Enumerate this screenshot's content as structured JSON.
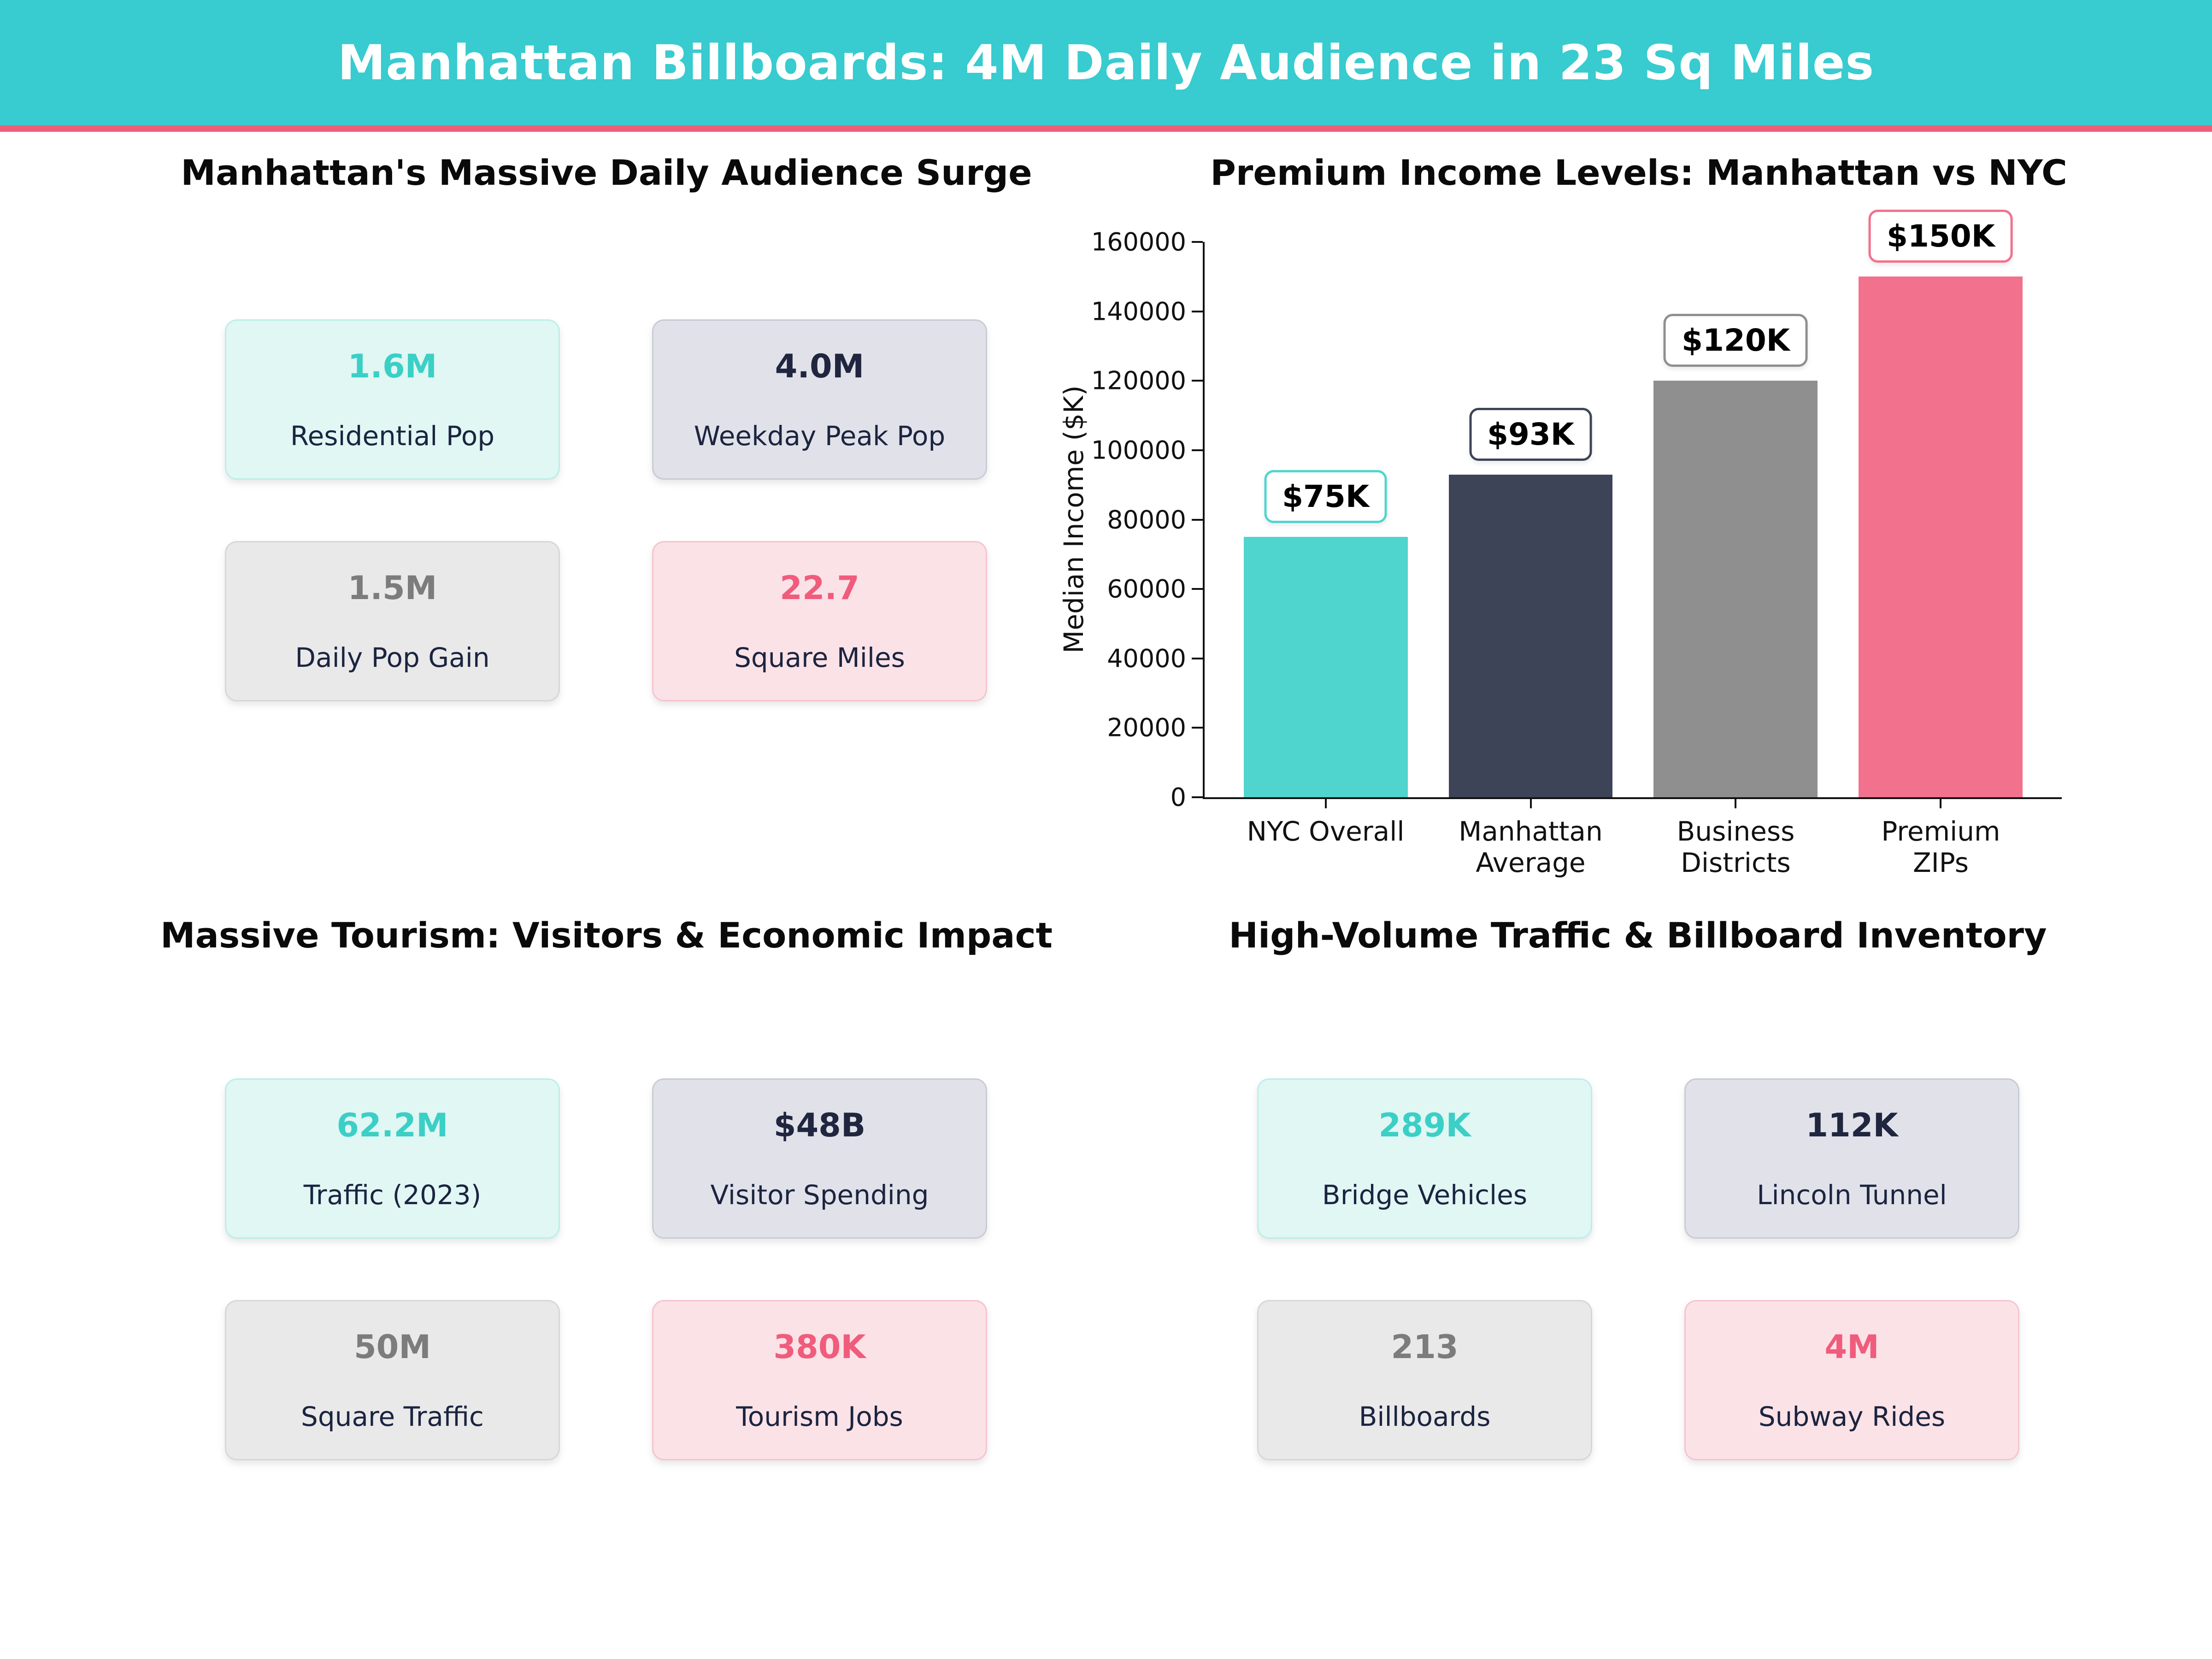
{
  "header": {
    "title": "Manhattan Billboards: 4M Daily Audience in 23 Sq Miles",
    "banner_color": "#38cbcf",
    "accent_color": "#ee5e78"
  },
  "quadrants": {
    "audience": {
      "title": "Manhattan's Massive Daily Audience Surge",
      "cards": [
        {
          "value": "1.6M",
          "label": "Residential Pop",
          "theme": "mint"
        },
        {
          "value": "4.0M",
          "label": "Weekday Peak Pop",
          "theme": "slate"
        },
        {
          "value": "1.5M",
          "label": "Daily Pop Gain",
          "theme": "gray"
        },
        {
          "value": "22.7",
          "label": "Square Miles",
          "theme": "pink"
        }
      ]
    },
    "tourism": {
      "title": "Massive Tourism: Visitors & Economic Impact",
      "cards": [
        {
          "value": "62.2M",
          "label": "Traffic (2023)",
          "theme": "mint"
        },
        {
          "value": "$48B",
          "label": "Visitor Spending",
          "theme": "slate"
        },
        {
          "value": "50M",
          "label": "Square Traffic",
          "theme": "gray"
        },
        {
          "value": "380K",
          "label": "Tourism Jobs",
          "theme": "pink"
        }
      ]
    },
    "traffic": {
      "title": "High-Volume Traffic & Billboard Inventory",
      "cards": [
        {
          "value": "289K",
          "label": "Bridge Vehicles",
          "theme": "mint"
        },
        {
          "value": "112K",
          "label": "Lincoln Tunnel",
          "theme": "slate"
        },
        {
          "value": "213",
          "label": "Billboards",
          "theme": "gray"
        },
        {
          "value": "4M",
          "label": "Subway Rides",
          "theme": "pink"
        }
      ]
    }
  },
  "chart_data": {
    "type": "bar",
    "title": "Premium Income Levels: Manhattan vs NYC",
    "categories": [
      "NYC Overall",
      "Manhattan\nAverage",
      "Business\nDistricts",
      "Premium ZIPs"
    ],
    "values": [
      75000,
      93000,
      120000,
      150000
    ],
    "value_labels": [
      "$75K",
      "$93K",
      "$120K",
      "$150K"
    ],
    "bar_colors": [
      "#4fd5cd",
      "#3d4458",
      "#8f8f8f",
      "#f2718d"
    ],
    "xlabel": "",
    "ylabel": "Median Income ($K)",
    "ylim": [
      0,
      160000
    ],
    "ytick_step": 20000,
    "grid": false,
    "legend": null
  }
}
